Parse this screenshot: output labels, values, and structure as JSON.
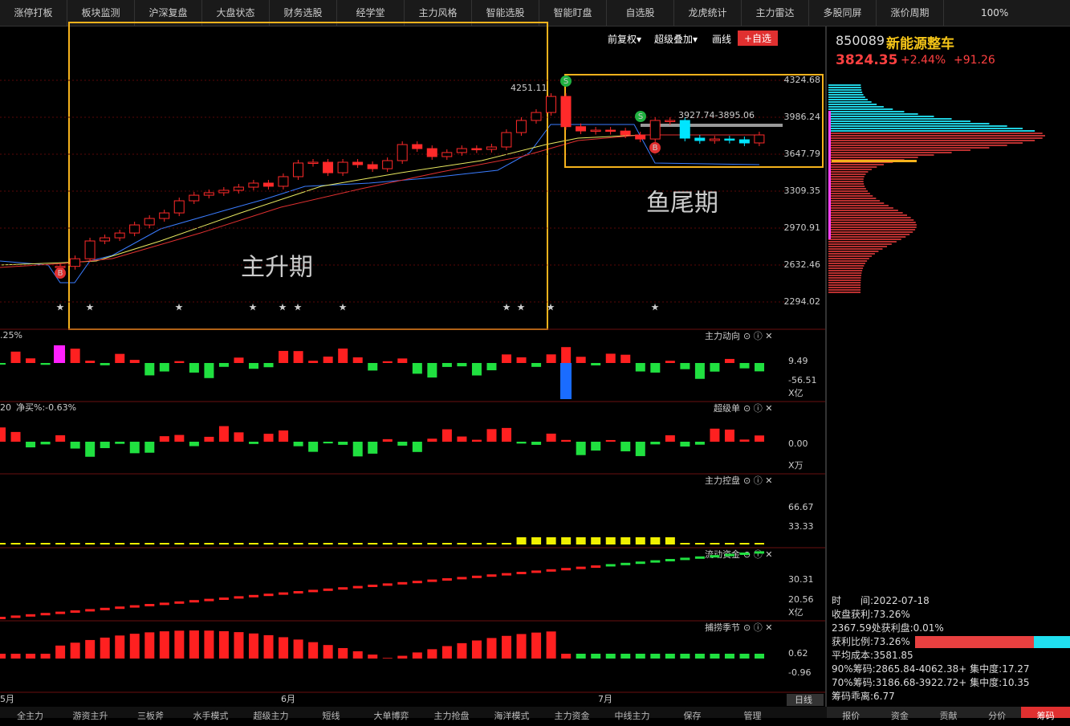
{
  "top_tabs": [
    "涨停打板",
    "板块监测",
    "沪深复盘",
    "大盘状态",
    "财务选股",
    "经学堂",
    "主力风格",
    "智能选股",
    "智能盯盘",
    "自选股",
    "龙虎统计",
    "主力雷达",
    "多股同屏",
    "涨价周期"
  ],
  "zoom": "100%",
  "toolbar": {
    "adjust": "前复权▾",
    "overlay": "超级叠加▾",
    "draw": "画线",
    "add": "+自选"
  },
  "quote": {
    "code": "850089",
    "name": "新能源整车",
    "price": "3824.35",
    "change_pct": "+2.44%",
    "change": "+91.26"
  },
  "main_chart": {
    "yticks": [
      4324.68,
      3986.24,
      3647.79,
      3309.35,
      2970.91,
      2632.46,
      2294.02
    ],
    "closes": [
      2620,
      2690,
      2853,
      2882,
      2926,
      3000,
      3059,
      3110,
      3221,
      3272,
      3295,
      3317,
      3346,
      3383,
      3354,
      3442,
      3567,
      3574,
      3478,
      3574,
      3552,
      3515,
      3589,
      3736,
      3699,
      3626,
      3663,
      3699,
      3692,
      3714,
      3846,
      3957,
      4030,
      4177,
      3900,
      3861,
      3868,
      3860,
      3824,
      3787,
      3957,
      3957,
      3795,
      3773,
      3787,
      3780,
      3751,
      3824.35
    ],
    "peak_label": "4251.11",
    "range_label": "3927.74-3895.06",
    "phase1": "主升期",
    "phase2": "鱼尾期",
    "buy": "B",
    "sell": "S"
  },
  "panels": [
    {
      "title": "主力动向",
      "labels": [
        "9.49",
        "-56.51",
        "X亿"
      ],
      "note": ".25%"
    },
    {
      "title": "超级单",
      "labels": [
        "0.00",
        "X万"
      ],
      "note": "20",
      "note2": "净买%:-0.63%"
    },
    {
      "title": "主力控盘",
      "labels": [
        "66.67",
        "33.33"
      ]
    },
    {
      "title": "流动资金",
      "labels": [
        "30.31",
        "20.56",
        "X亿"
      ]
    },
    {
      "title": "捕捞季节",
      "labels": [
        "0.62",
        "-0.96"
      ]
    }
  ],
  "dates": [
    "5月",
    "6月",
    "7月"
  ],
  "period": "日线",
  "chips": [
    "时　　间:2022-07-18",
    "收盘获利:73.26%",
    "2367.59处获利盘:0.01%",
    "获利比例:73.26%",
    "平均成本:3581.85",
    "90%筹码:2865.84-4062.38+ 集中度:17.27",
    "70%筹码:3186.68-3922.72+ 集中度:10.35",
    "筹码乖离:6.77"
  ],
  "bottom_tabs": [
    "全主力",
    "游资主升",
    "三板斧",
    "水手模式",
    "超级主力",
    "短线",
    "大单博弈",
    "主力抢盘",
    "海洋模式",
    "主力资金",
    "中线主力",
    "保存",
    "管理"
  ],
  "right_tabs": [
    "报价",
    "资金",
    "贡献",
    "分价",
    "筹码"
  ]
}
